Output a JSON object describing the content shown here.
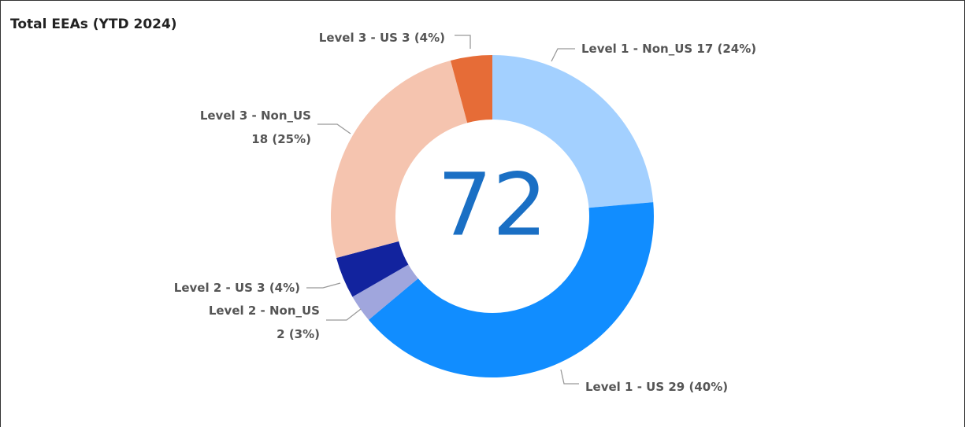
{
  "chart_data": {
    "type": "donut",
    "title": "Total EEAs (YTD 2024)",
    "categories": [
      "Level 1 - Non_US",
      "Level 1 - US",
      "Level 2 - Non_US",
      "Level 2 - US",
      "Level 3 - Non_US",
      "Level 3 - US"
    ],
    "values": [
      17,
      29,
      2,
      3,
      18,
      3
    ],
    "value_labels": [
      "17 (24%)",
      "29 (40%)",
      "2 (3%)",
      "3 (4%)",
      "18 (25%)",
      "3 (4%)"
    ],
    "colors": [
      "#a3d0ff",
      "#118dff",
      "#a0a6dd",
      "#12239e",
      "#f5c4af",
      "#e66c37"
    ],
    "center_label": "72"
  }
}
